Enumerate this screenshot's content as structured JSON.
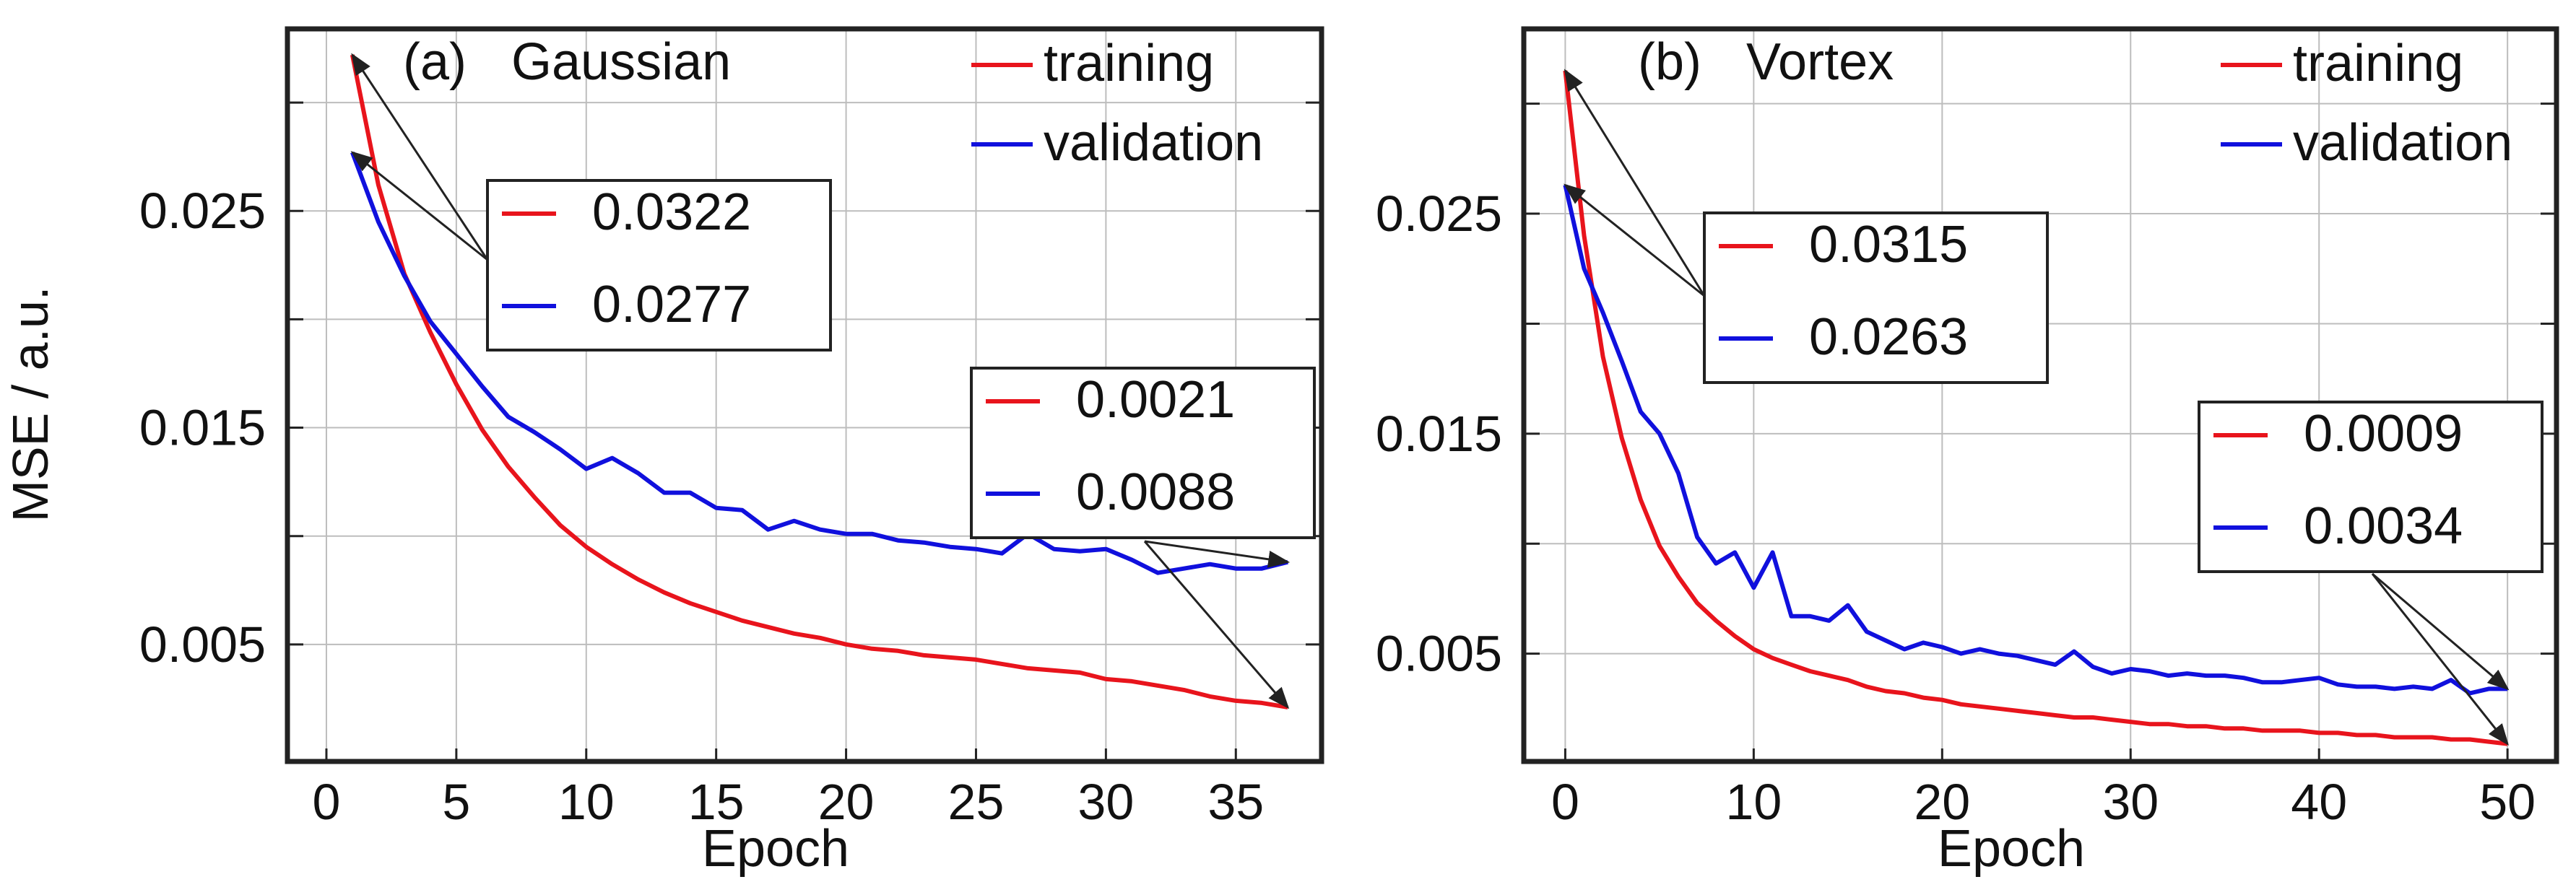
{
  "shared": {
    "ylabel": "MSE / a.u.",
    "xlabel": "Epoch"
  },
  "colors": {
    "training": "#e8141c",
    "validation": "#1010dd",
    "axis": "#222222",
    "grid": "#bdbdbd"
  },
  "chart_data": [
    {
      "type": "line",
      "panel_label": "(a)",
      "title": "Gaussian",
      "xlabel": "Epoch",
      "ylabel": "MSE / a.u.",
      "xlim": [
        -1.5,
        38.3
      ],
      "ylim": [
        -0.0004,
        0.0334
      ],
      "xticks": [
        "0",
        "5",
        "10",
        "15",
        "20",
        "25",
        "30",
        "35"
      ],
      "yticks": [
        "0.005",
        "0.015",
        "0.025"
      ],
      "grid": true,
      "legend": {
        "position": "top-right",
        "entries": [
          "training",
          "validation"
        ]
      },
      "series": [
        {
          "name": "training",
          "x": [
            1,
            2,
            3,
            4,
            5,
            6,
            7,
            8,
            9,
            10,
            11,
            12,
            13,
            14,
            15,
            16,
            17,
            18,
            19,
            20,
            21,
            22,
            23,
            24,
            25,
            26,
            27,
            28,
            29,
            30,
            31,
            32,
            33,
            34,
            35,
            36,
            37
          ],
          "values": [
            0.0322,
            0.0262,
            0.0221,
            0.0194,
            0.017,
            0.0149,
            0.0132,
            0.0118,
            0.0105,
            0.0095,
            0.0087,
            0.008,
            0.0074,
            0.0069,
            0.0065,
            0.0061,
            0.0058,
            0.0055,
            0.0053,
            0.005,
            0.0048,
            0.0047,
            0.0045,
            0.0044,
            0.0043,
            0.0041,
            0.0039,
            0.0038,
            0.0037,
            0.0034,
            0.0033,
            0.0031,
            0.0029,
            0.0026,
            0.0024,
            0.0023,
            0.0021
          ]
        },
        {
          "name": "validation",
          "x": [
            1,
            2,
            3,
            4,
            5,
            6,
            7,
            8,
            9,
            10,
            11,
            12,
            13,
            14,
            15,
            16,
            17,
            18,
            19,
            20,
            21,
            22,
            23,
            24,
            25,
            26,
            27,
            28,
            29,
            30,
            31,
            32,
            33,
            34,
            35,
            36,
            37
          ],
          "values": [
            0.0277,
            0.0245,
            0.022,
            0.0199,
            0.0184,
            0.0169,
            0.0155,
            0.0148,
            0.014,
            0.0131,
            0.0136,
            0.0129,
            0.012,
            0.012,
            0.0113,
            0.0112,
            0.0103,
            0.0107,
            0.0103,
            0.0101,
            0.0101,
            0.0098,
            0.0097,
            0.0095,
            0.0094,
            0.0092,
            0.0101,
            0.0094,
            0.0093,
            0.0094,
            0.0089,
            0.0083,
            0.0085,
            0.0087,
            0.0085,
            0.0085,
            0.0088
          ]
        }
      ],
      "annotations": [
        {
          "position": "left",
          "series": [
            "training",
            "validation"
          ],
          "values": [
            "0.0322",
            "0.0277"
          ],
          "points_to": [
            [
              1,
              0.0322
            ],
            [
              1,
              0.0277
            ]
          ]
        },
        {
          "position": "right",
          "series": [
            "training",
            "validation"
          ],
          "values": [
            "0.0021",
            "0.0088"
          ],
          "points_to": [
            [
              37,
              0.0021
            ],
            [
              37,
              0.0088
            ]
          ]
        }
      ]
    },
    {
      "type": "line",
      "panel_label": "(b)",
      "title": "Vortex",
      "xlabel": "Epoch",
      "ylabel": "MSE / a.u.",
      "xlim": [
        -2.2,
        52.6
      ],
      "ylim": [
        0.0001,
        0.0334
      ],
      "xticks": [
        "0",
        "10",
        "20",
        "30",
        "40",
        "50"
      ],
      "yticks": [
        "0.005",
        "0.015",
        "0.025"
      ],
      "grid": true,
      "legend": {
        "position": "top-right",
        "entries": [
          "training",
          "validation"
        ]
      },
      "series": [
        {
          "name": "training",
          "x": [
            0,
            1,
            2,
            3,
            4,
            5,
            6,
            7,
            8,
            9,
            10,
            11,
            12,
            13,
            14,
            15,
            16,
            17,
            18,
            19,
            20,
            21,
            22,
            23,
            24,
            25,
            26,
            27,
            28,
            29,
            30,
            31,
            32,
            33,
            34,
            35,
            36,
            37,
            38,
            39,
            40,
            41,
            42,
            43,
            44,
            45,
            46,
            47,
            48,
            49,
            50
          ],
          "values": [
            0.0315,
            0.024,
            0.0185,
            0.0148,
            0.012,
            0.0099,
            0.0085,
            0.0073,
            0.0065,
            0.0058,
            0.0052,
            0.0048,
            0.0045,
            0.0042,
            0.004,
            0.0038,
            0.0035,
            0.0033,
            0.0032,
            0.003,
            0.0029,
            0.0027,
            0.0026,
            0.0025,
            0.0024,
            0.0023,
            0.0022,
            0.0021,
            0.0021,
            0.002,
            0.0019,
            0.0018,
            0.0018,
            0.0017,
            0.0017,
            0.0016,
            0.0016,
            0.0015,
            0.0015,
            0.0015,
            0.0014,
            0.0014,
            0.0013,
            0.0013,
            0.0012,
            0.0012,
            0.0012,
            0.0011,
            0.0011,
            0.001,
            0.0009
          ]
        },
        {
          "name": "validation",
          "x": [
            0,
            1,
            2,
            3,
            4,
            5,
            6,
            7,
            8,
            9,
            10,
            11,
            12,
            13,
            14,
            15,
            16,
            17,
            18,
            19,
            20,
            21,
            22,
            23,
            24,
            25,
            26,
            27,
            28,
            29,
            30,
            31,
            32,
            33,
            34,
            35,
            36,
            37,
            38,
            39,
            40,
            41,
            42,
            43,
            44,
            45,
            46,
            47,
            48,
            49,
            50
          ],
          "values": [
            0.0263,
            0.0225,
            0.0205,
            0.0183,
            0.016,
            0.015,
            0.0132,
            0.0103,
            0.0091,
            0.0096,
            0.008,
            0.0096,
            0.0067,
            0.0067,
            0.0065,
            0.0072,
            0.006,
            0.0056,
            0.0052,
            0.0055,
            0.0053,
            0.005,
            0.0052,
            0.005,
            0.0049,
            0.0047,
            0.0045,
            0.0051,
            0.0044,
            0.0041,
            0.0043,
            0.0042,
            0.004,
            0.0041,
            0.004,
            0.004,
            0.0039,
            0.0037,
            0.0037,
            0.0038,
            0.0039,
            0.0036,
            0.0035,
            0.0035,
            0.0034,
            0.0035,
            0.0034,
            0.0038,
            0.0032,
            0.0034,
            0.0034
          ]
        }
      ],
      "annotations": [
        {
          "position": "left",
          "series": [
            "training",
            "validation"
          ],
          "values": [
            "0.0315",
            "0.0263"
          ],
          "points_to": [
            [
              0,
              0.0315
            ],
            [
              0,
              0.0263
            ]
          ]
        },
        {
          "position": "right",
          "series": [
            "training",
            "validation"
          ],
          "values": [
            "0.0009",
            "0.0034"
          ],
          "points_to": [
            [
              50,
              0.0009
            ],
            [
              50,
              0.0034
            ]
          ]
        }
      ]
    }
  ]
}
